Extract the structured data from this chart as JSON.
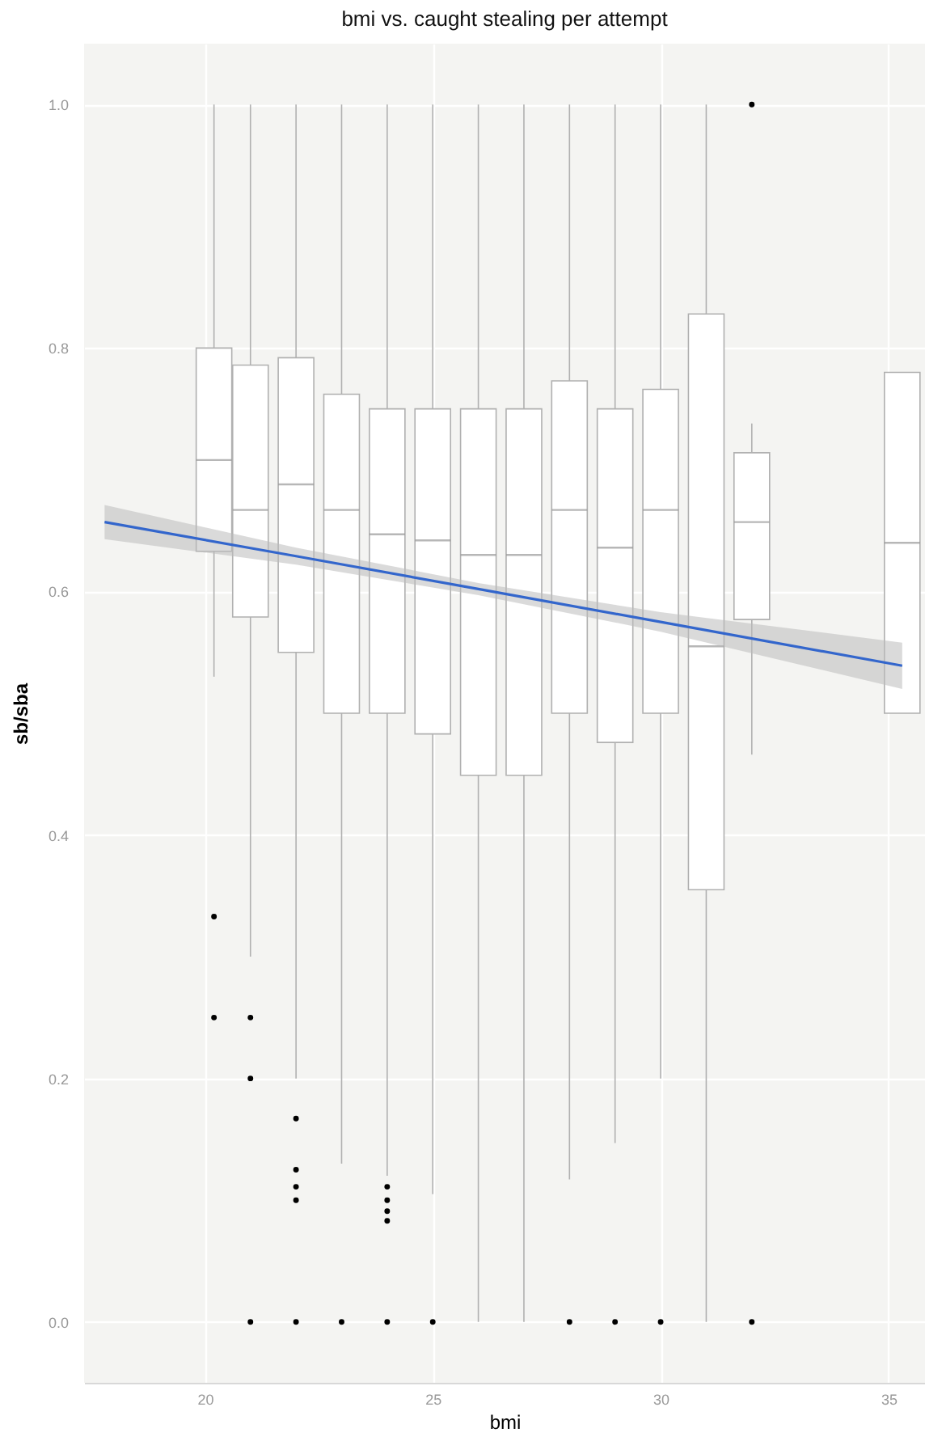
{
  "chart_data": {
    "type": "box",
    "title": "bmi vs. caught stealing per attempt",
    "xlabel": "bmi",
    "ylabel": "sb/sba",
    "xlim": [
      17.35,
      35.8
    ],
    "xticks": [
      20,
      25,
      30,
      35
    ],
    "ylim": [
      -0.05,
      1.05
    ],
    "yticks": [
      {
        "value": 0,
        "label": "0.0"
      },
      {
        "value": 0.2,
        "label": "0.2"
      },
      {
        "value": 0.4,
        "label": "0.4"
      },
      {
        "value": 0.6,
        "label": "0.6"
      },
      {
        "value": 0.8,
        "label": "0.8"
      },
      {
        "value": 1,
        "label": "1.0"
      }
    ],
    "grid": true,
    "series": [
      {
        "color": "#ffffff",
        "x": [
          20.2,
          21,
          22,
          23,
          24,
          25,
          26,
          27,
          28,
          29,
          30,
          31,
          32,
          35.3
        ],
        "boxes": [
          {
            "low": 0.53,
            "q1": 0.633,
            "median": 0.708,
            "q3": 0.8,
            "high": 1,
            "outliers": [
              0.333,
              0.25
            ]
          },
          {
            "low": 0.3,
            "q1": 0.579,
            "median": 0.667,
            "q3": 0.786,
            "high": 1,
            "outliers": [
              0.25,
              0.2,
              0
            ]
          },
          {
            "low": 0.2,
            "q1": 0.55,
            "median": 0.688,
            "q3": 0.792,
            "high": 1,
            "outliers": [
              0.167,
              0.125,
              0.111,
              0.1,
              0
            ]
          },
          {
            "low": 0.13,
            "q1": 0.5,
            "median": 0.667,
            "q3": 0.762,
            "high": 1,
            "outliers": [
              0
            ]
          },
          {
            "low": 0.12,
            "q1": 0.5,
            "median": 0.647,
            "q3": 0.75,
            "high": 1,
            "outliers": [
              0.111,
              0.1,
              0.091,
              0.083,
              0
            ]
          },
          {
            "low": 0.105,
            "q1": 0.483,
            "median": 0.642,
            "q3": 0.75,
            "high": 1,
            "outliers": [
              0
            ]
          },
          {
            "low": 0,
            "q1": 0.449,
            "median": 0.63,
            "q3": 0.75,
            "high": 1
          },
          {
            "low": 0,
            "q1": 0.449,
            "median": 0.63,
            "q3": 0.75,
            "high": 1
          },
          {
            "low": 0.117,
            "q1": 0.5,
            "median": 0.667,
            "q3": 0.773,
            "high": 1,
            "outliers": [
              0
            ]
          },
          {
            "low": 0.147,
            "q1": 0.476,
            "median": 0.636,
            "q3": 0.75,
            "high": 1,
            "outliers": [
              0
            ]
          },
          {
            "low": 0.2,
            "q1": 0.5,
            "median": 0.667,
            "q3": 0.766,
            "high": 1,
            "outliers": [
              0
            ]
          },
          {
            "low": 0,
            "q1": 0.355,
            "median": 0.555,
            "q3": 0.828,
            "high": 1
          },
          {
            "low": 0.466,
            "q1": 0.577,
            "median": 0.657,
            "q3": 0.714,
            "high": 0.738,
            "outliers": [
              1,
              0
            ]
          },
          {
            "low": 0.5,
            "q1": 0.5,
            "median": 0.64,
            "q3": 0.78,
            "high": 0.78
          }
        ]
      },
      {
        "type": "line",
        "color": "#3366cc",
        "x": [
          17.8,
          22,
          26,
          30,
          35.3
        ],
        "values": [
          0.657,
          0.629,
          0.602,
          0.575,
          0.539
        ],
        "lower": [
          0.643,
          0.622,
          0.597,
          0.567,
          0.52
        ],
        "upper": [
          0.671,
          0.636,
          0.607,
          0.583,
          0.558
        ]
      }
    ]
  }
}
